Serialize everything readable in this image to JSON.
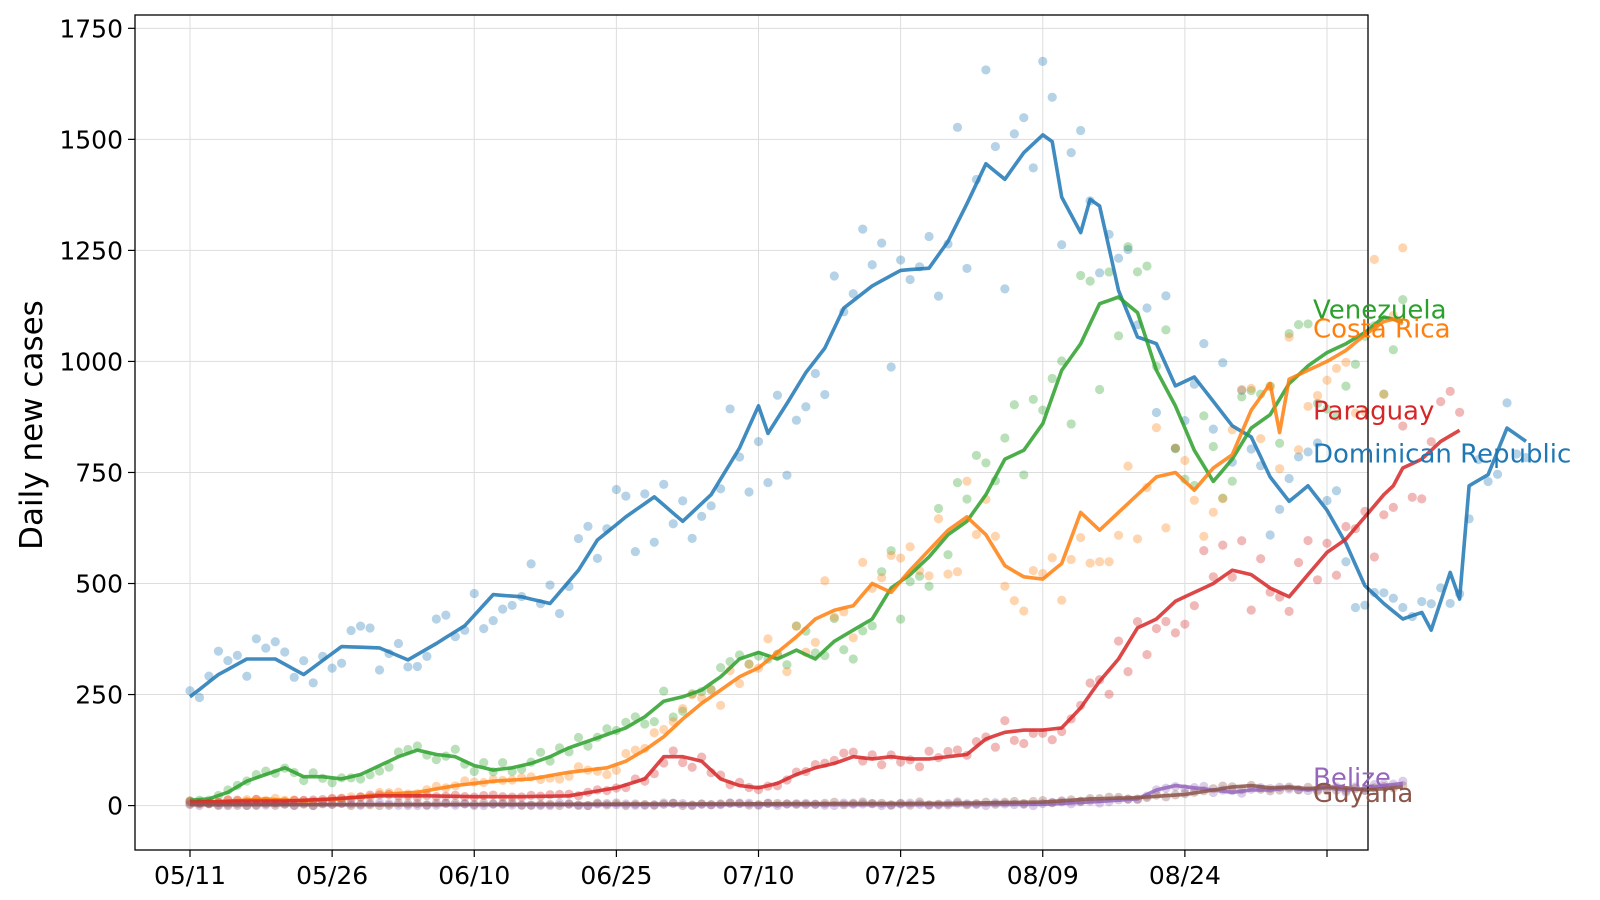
{
  "chart_data": {
    "type": "line",
    "title": "",
    "xlabel": "",
    "ylabel": "Daily new cases",
    "x_start": "05/11",
    "x_ticks": [
      "05/11",
      "05/26",
      "06/10",
      "06/25",
      "07/10",
      "07/25",
      "08/09",
      "08/24",
      ""
    ],
    "ylim": [
      -100,
      1780
    ],
    "y_ticks": [
      0,
      250,
      500,
      750,
      1000,
      1250,
      1500,
      1750
    ],
    "grid": true,
    "legend": "none",
    "series": [
      {
        "name": "Dominican Republic",
        "color": "#1f77b4",
        "keypoints": [
          [
            0,
            245
          ],
          [
            3,
            295
          ],
          [
            6,
            330
          ],
          [
            9,
            330
          ],
          [
            12,
            295
          ],
          [
            16,
            358
          ],
          [
            20,
            355
          ],
          [
            23,
            328
          ],
          [
            26,
            365
          ],
          [
            29,
            405
          ],
          [
            32,
            475
          ],
          [
            35,
            470
          ],
          [
            38,
            455
          ],
          [
            41,
            530
          ],
          [
            43,
            598
          ],
          [
            46,
            650
          ],
          [
            49,
            695
          ],
          [
            52,
            640
          ],
          [
            55,
            700
          ],
          [
            58,
            805
          ],
          [
            60,
            900
          ],
          [
            61,
            838
          ],
          [
            63,
            905
          ],
          [
            65,
            975
          ],
          [
            67,
            1030
          ],
          [
            69,
            1120
          ],
          [
            72,
            1170
          ],
          [
            75,
            1205
          ],
          [
            78,
            1210
          ],
          [
            80,
            1270
          ],
          [
            82,
            1355
          ],
          [
            84,
            1445
          ],
          [
            86,
            1410
          ],
          [
            88,
            1470
          ],
          [
            90,
            1510
          ],
          [
            91,
            1495
          ],
          [
            92,
            1370
          ],
          [
            94,
            1290
          ],
          [
            95,
            1365
          ],
          [
            96,
            1350
          ],
          [
            98,
            1160
          ],
          [
            100,
            1055
          ],
          [
            102,
            1040
          ],
          [
            104,
            945
          ],
          [
            106,
            965
          ],
          [
            108,
            910
          ],
          [
            110,
            855
          ],
          [
            112,
            830
          ],
          [
            114,
            740
          ],
          [
            116,
            685
          ],
          [
            118,
            720
          ],
          [
            120,
            665
          ],
          [
            122,
            590
          ],
          [
            124,
            495
          ],
          [
            126,
            455
          ],
          [
            128,
            420
          ],
          [
            130,
            435
          ],
          [
            131,
            395
          ],
          [
            133,
            525
          ],
          [
            134,
            465
          ],
          [
            135,
            720
          ],
          [
            137,
            745
          ],
          [
            139,
            850
          ],
          [
            140,
            835
          ],
          [
            141,
            820
          ]
        ]
      },
      {
        "name": "Venezuela",
        "color": "#2ca02c",
        "keypoints": [
          [
            0,
            12
          ],
          [
            2,
            15
          ],
          [
            4,
            30
          ],
          [
            6,
            55
          ],
          [
            8,
            70
          ],
          [
            10,
            85
          ],
          [
            12,
            65
          ],
          [
            14,
            65
          ],
          [
            16,
            60
          ],
          [
            18,
            70
          ],
          [
            20,
            90
          ],
          [
            22,
            110
          ],
          [
            24,
            125
          ],
          [
            26,
            115
          ],
          [
            28,
            110
          ],
          [
            30,
            90
          ],
          [
            32,
            80
          ],
          [
            34,
            85
          ],
          [
            36,
            95
          ],
          [
            38,
            110
          ],
          [
            40,
            130
          ],
          [
            42,
            145
          ],
          [
            44,
            160
          ],
          [
            46,
            175
          ],
          [
            48,
            200
          ],
          [
            50,
            235
          ],
          [
            52,
            245
          ],
          [
            54,
            260
          ],
          [
            56,
            290
          ],
          [
            58,
            330
          ],
          [
            60,
            345
          ],
          [
            62,
            330
          ],
          [
            64,
            350
          ],
          [
            66,
            330
          ],
          [
            68,
            370
          ],
          [
            70,
            395
          ],
          [
            72,
            420
          ],
          [
            74,
            490
          ],
          [
            76,
            520
          ],
          [
            78,
            560
          ],
          [
            80,
            610
          ],
          [
            82,
            640
          ],
          [
            84,
            700
          ],
          [
            86,
            780
          ],
          [
            88,
            800
          ],
          [
            90,
            860
          ],
          [
            92,
            980
          ],
          [
            94,
            1040
          ],
          [
            96,
            1130
          ],
          [
            98,
            1145
          ],
          [
            100,
            1110
          ],
          [
            102,
            980
          ],
          [
            104,
            900
          ],
          [
            106,
            800
          ],
          [
            108,
            730
          ],
          [
            110,
            780
          ],
          [
            112,
            850
          ],
          [
            114,
            880
          ],
          [
            116,
            950
          ],
          [
            118,
            990
          ],
          [
            120,
            1020
          ],
          [
            122,
            1040
          ],
          [
            124,
            1065
          ],
          [
            126,
            1100
          ],
          [
            127,
            1095
          ],
          [
            128,
            1090
          ]
        ]
      },
      {
        "name": "Costa Rica",
        "color": "#ff7f0e",
        "keypoints": [
          [
            0,
            5
          ],
          [
            4,
            10
          ],
          [
            8,
            15
          ],
          [
            12,
            10
          ],
          [
            16,
            15
          ],
          [
            20,
            25
          ],
          [
            24,
            30
          ],
          [
            28,
            45
          ],
          [
            32,
            55
          ],
          [
            36,
            60
          ],
          [
            40,
            75
          ],
          [
            44,
            85
          ],
          [
            46,
            100
          ],
          [
            48,
            125
          ],
          [
            50,
            155
          ],
          [
            52,
            195
          ],
          [
            54,
            230
          ],
          [
            56,
            260
          ],
          [
            58,
            290
          ],
          [
            60,
            310
          ],
          [
            62,
            345
          ],
          [
            64,
            380
          ],
          [
            66,
            420
          ],
          [
            68,
            440
          ],
          [
            70,
            450
          ],
          [
            72,
            500
          ],
          [
            74,
            480
          ],
          [
            76,
            530
          ],
          [
            78,
            575
          ],
          [
            80,
            620
          ],
          [
            82,
            650
          ],
          [
            84,
            610
          ],
          [
            86,
            540
          ],
          [
            88,
            515
          ],
          [
            90,
            510
          ],
          [
            92,
            545
          ],
          [
            94,
            660
          ],
          [
            96,
            620
          ],
          [
            98,
            660
          ],
          [
            100,
            700
          ],
          [
            102,
            740
          ],
          [
            104,
            750
          ],
          [
            106,
            710
          ],
          [
            108,
            760
          ],
          [
            110,
            790
          ],
          [
            112,
            890
          ],
          [
            114,
            950
          ],
          [
            115,
            840
          ],
          [
            116,
            960
          ],
          [
            118,
            980
          ],
          [
            120,
            1000
          ],
          [
            122,
            1025
          ],
          [
            124,
            1060
          ],
          [
            126,
            1090
          ],
          [
            127,
            1095
          ],
          [
            128,
            1085
          ]
        ]
      },
      {
        "name": "Paraguay",
        "color": "#d62728",
        "keypoints": [
          [
            0,
            8
          ],
          [
            5,
            10
          ],
          [
            10,
            10
          ],
          [
            15,
            15
          ],
          [
            20,
            22
          ],
          [
            25,
            22
          ],
          [
            30,
            20
          ],
          [
            35,
            20
          ],
          [
            40,
            22
          ],
          [
            45,
            40
          ],
          [
            48,
            60
          ],
          [
            50,
            110
          ],
          [
            52,
            110
          ],
          [
            54,
            100
          ],
          [
            56,
            60
          ],
          [
            58,
            45
          ],
          [
            60,
            40
          ],
          [
            62,
            50
          ],
          [
            64,
            70
          ],
          [
            66,
            85
          ],
          [
            68,
            95
          ],
          [
            70,
            110
          ],
          [
            72,
            105
          ],
          [
            74,
            110
          ],
          [
            76,
            105
          ],
          [
            78,
            105
          ],
          [
            80,
            110
          ],
          [
            82,
            115
          ],
          [
            84,
            150
          ],
          [
            86,
            165
          ],
          [
            88,
            170
          ],
          [
            90,
            170
          ],
          [
            92,
            175
          ],
          [
            94,
            220
          ],
          [
            96,
            280
          ],
          [
            98,
            330
          ],
          [
            100,
            400
          ],
          [
            102,
            420
          ],
          [
            104,
            460
          ],
          [
            106,
            480
          ],
          [
            108,
            500
          ],
          [
            110,
            530
          ],
          [
            112,
            520
          ],
          [
            114,
            490
          ],
          [
            116,
            470
          ],
          [
            118,
            520
          ],
          [
            120,
            570
          ],
          [
            122,
            600
          ],
          [
            124,
            650
          ],
          [
            126,
            700
          ],
          [
            127,
            720
          ],
          [
            128,
            760
          ],
          [
            130,
            780
          ],
          [
            132,
            820
          ],
          [
            134,
            845
          ]
        ]
      },
      {
        "name": "Belize",
        "color": "#9467bd",
        "keypoints": [
          [
            0,
            2
          ],
          [
            20,
            2
          ],
          [
            40,
            2
          ],
          [
            60,
            2
          ],
          [
            80,
            2
          ],
          [
            90,
            3
          ],
          [
            95,
            8
          ],
          [
            100,
            15
          ],
          [
            102,
            35
          ],
          [
            104,
            45
          ],
          [
            106,
            40
          ],
          [
            108,
            35
          ],
          [
            110,
            30
          ],
          [
            112,
            35
          ],
          [
            114,
            35
          ],
          [
            116,
            40
          ],
          [
            118,
            35
          ],
          [
            120,
            40
          ],
          [
            122,
            35
          ],
          [
            124,
            38
          ],
          [
            126,
            45
          ],
          [
            128,
            50
          ]
        ]
      },
      {
        "name": "Guyana",
        "color": "#8c564b",
        "keypoints": [
          [
            0,
            2
          ],
          [
            20,
            2
          ],
          [
            40,
            3
          ],
          [
            60,
            4
          ],
          [
            80,
            5
          ],
          [
            90,
            8
          ],
          [
            95,
            15
          ],
          [
            100,
            18
          ],
          [
            105,
            25
          ],
          [
            108,
            35
          ],
          [
            110,
            42
          ],
          [
            112,
            45
          ],
          [
            114,
            40
          ],
          [
            116,
            42
          ],
          [
            118,
            38
          ],
          [
            120,
            42
          ],
          [
            122,
            40
          ],
          [
            124,
            35
          ],
          [
            126,
            38
          ],
          [
            128,
            42
          ]
        ]
      }
    ]
  }
}
